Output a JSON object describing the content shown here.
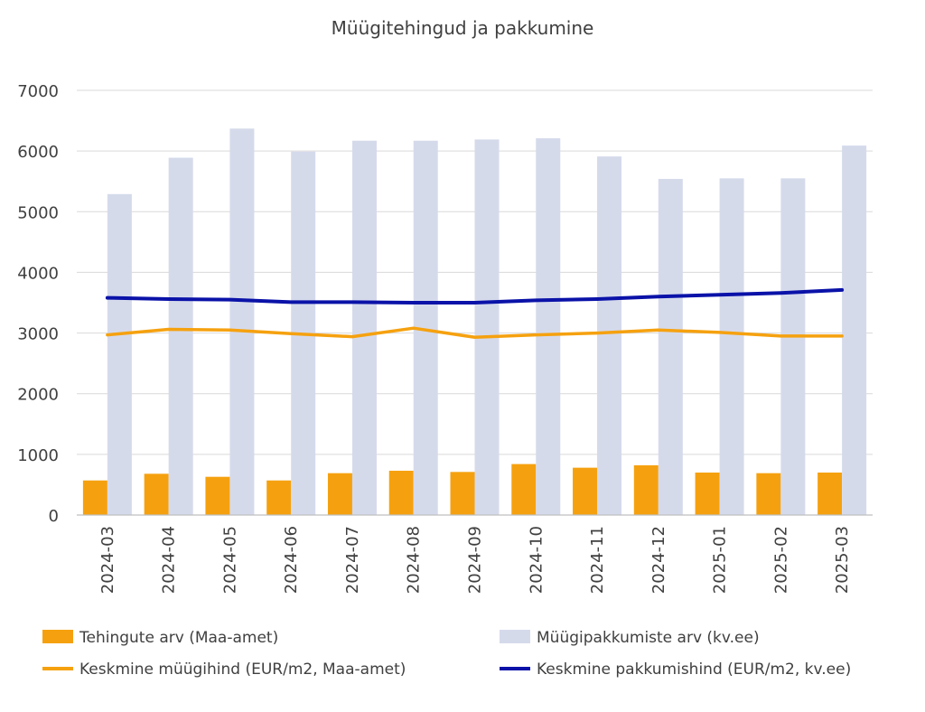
{
  "chart_data": {
    "type": "bar",
    "title": "Müügitehingud ja pakkumine",
    "categories": [
      "2024-03",
      "2024-04",
      "2024-05",
      "2024-06",
      "2024-07",
      "2024-08",
      "2024-09",
      "2024-10",
      "2024-11",
      "2024-12",
      "2025-01",
      "2025-02",
      "2025-03"
    ],
    "ylim": [
      0,
      7000
    ],
    "yticks": [
      0,
      1000,
      2000,
      3000,
      4000,
      5000,
      6000,
      7000
    ],
    "grid": true,
    "legend_position": "bottom",
    "series": [
      {
        "name": "Tehingute arv (Maa-amet)",
        "type": "bar",
        "color": "#F5A10F",
        "values": [
          570,
          680,
          630,
          570,
          690,
          730,
          710,
          840,
          780,
          820,
          700,
          690,
          700
        ]
      },
      {
        "name": "Müügipakkumiste arv (kv.ee)",
        "type": "bar",
        "color": "#D5DAEB",
        "values": [
          5290,
          5890,
          6370,
          5990,
          6170,
          6170,
          6190,
          6210,
          5910,
          5540,
          5550,
          5550,
          6090
        ]
      },
      {
        "name": "Keskmine müügihind (EUR/m2, Maa-amet)",
        "type": "line",
        "color": "#F5A10F",
        "values": [
          2970,
          3060,
          3050,
          2990,
          2940,
          3080,
          2930,
          2970,
          3000,
          3050,
          3010,
          2950,
          2950
        ]
      },
      {
        "name": "Keskmine pakkumishind (EUR/m2, kv.ee)",
        "type": "line",
        "color": "#0A12A8",
        "values": [
          3580,
          3560,
          3550,
          3510,
          3510,
          3500,
          3500,
          3540,
          3560,
          3600,
          3630,
          3660,
          3710
        ]
      }
    ]
  }
}
